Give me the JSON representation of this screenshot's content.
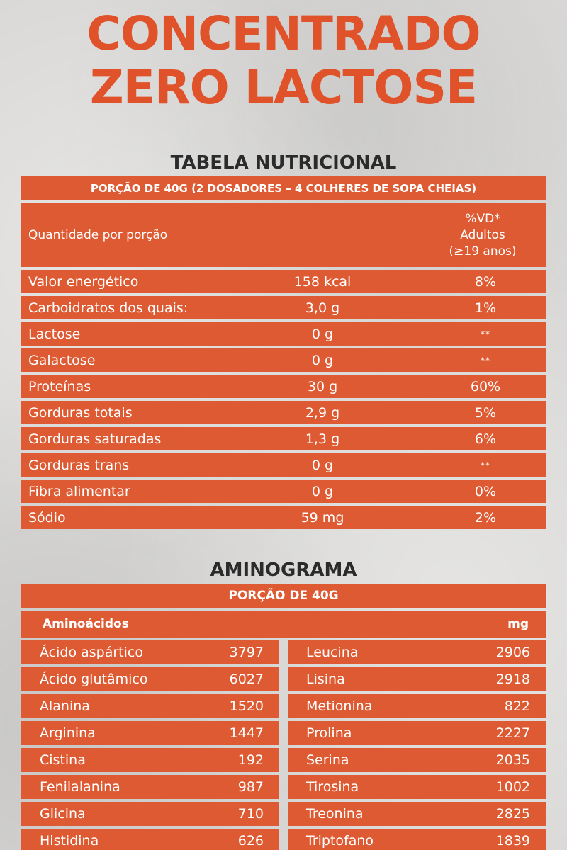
{
  "title": {
    "line1": "CONCENTRADO",
    "line2": "ZERO LACTOSE"
  },
  "nutrition": {
    "section_title": "TABELA NUTRICIONAL",
    "serving": "PORÇÃO DE 40G (2 DOSADORES – 4 COLHERES DE SOPA CHEIAS)",
    "header_label": "Quantidade por porção",
    "vd_line1": "%VD*",
    "vd_line2": "Adultos",
    "vd_line3": "(≥19 anos)",
    "rows": [
      {
        "name": "Valor energético",
        "qty": "158 kcal",
        "vd": "8%"
      },
      {
        "name": "Carboidratos dos quais:",
        "qty": "3,0 g",
        "vd": "1%"
      },
      {
        "name": "Lactose",
        "qty": "0 g",
        "vd": "**"
      },
      {
        "name": "Galactose",
        "qty": "0 g",
        "vd": "**"
      },
      {
        "name": "Proteínas",
        "qty": "30 g",
        "vd": "60%"
      },
      {
        "name": "Gorduras totais",
        "qty": "2,9 g",
        "vd": "5%"
      },
      {
        "name": "Gorduras saturadas",
        "qty": "1,3 g",
        "vd": "6%"
      },
      {
        "name": "Gorduras trans",
        "qty": "0 g",
        "vd": "**"
      },
      {
        "name": "Fibra alimentar",
        "qty": "0 g",
        "vd": "0%"
      },
      {
        "name": "Sódio",
        "qty": "59 mg",
        "vd": "2%"
      }
    ]
  },
  "aminogram": {
    "section_title": "AMINOGRAMA",
    "serving": "PORÇÃO DE 40G",
    "col_left_header": "Aminoácidos",
    "col_right_header": "mg",
    "left": [
      {
        "name": "Ácido aspártico",
        "mg": "3797"
      },
      {
        "name": "Ácido glutâmico",
        "mg": "6027"
      },
      {
        "name": "Alanina",
        "mg": "1520"
      },
      {
        "name": "Arginina",
        "mg": "1447"
      },
      {
        "name": "Cistina",
        "mg": "192"
      },
      {
        "name": "Fenilalanina",
        "mg": "987"
      },
      {
        "name": "Glicina",
        "mg": "710"
      },
      {
        "name": "Histidina",
        "mg": "626"
      }
    ],
    "right": [
      {
        "name": "Leucina",
        "mg": "2906"
      },
      {
        "name": "Lisina",
        "mg": "2918"
      },
      {
        "name": "Metionina",
        "mg": "822"
      },
      {
        "name": "Prolina",
        "mg": "2227"
      },
      {
        "name": "Serina",
        "mg": "2035"
      },
      {
        "name": "Tirosina",
        "mg": "1002"
      },
      {
        "name": "Treonina",
        "mg": "2825"
      },
      {
        "name": "Triptofano",
        "mg": "1839"
      }
    ]
  }
}
